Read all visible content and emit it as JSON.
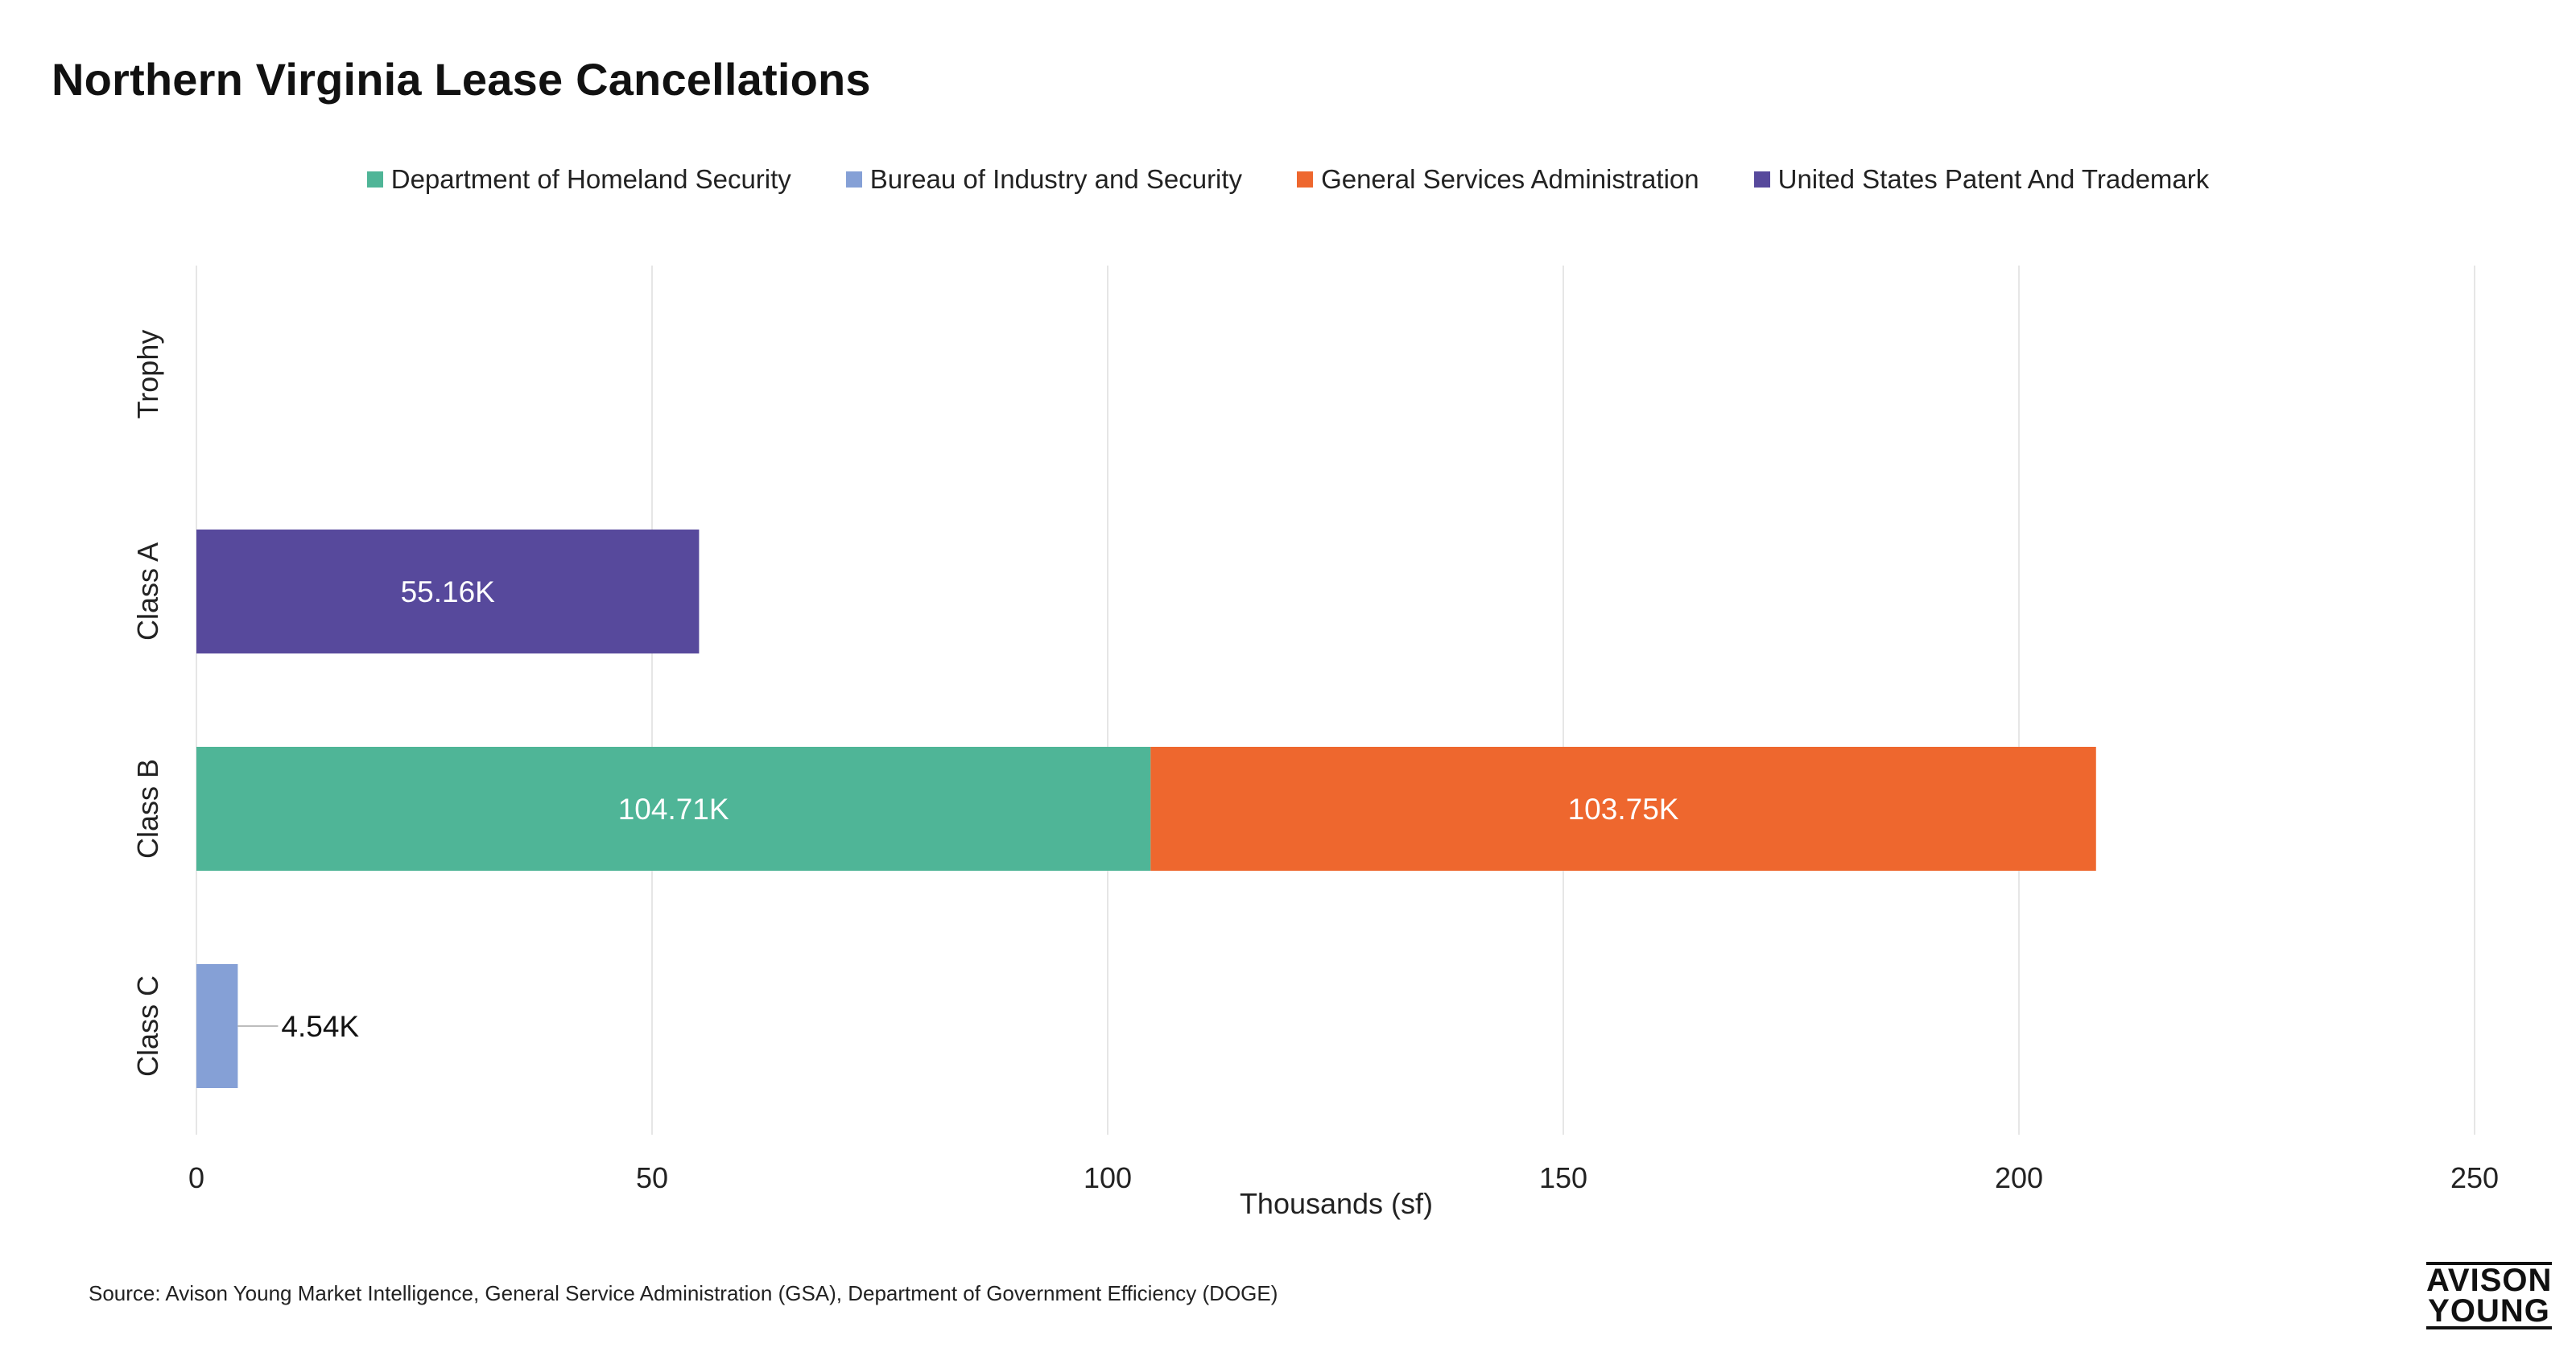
{
  "chart_data": {
    "type": "bar",
    "orientation": "horizontal",
    "stacked": true,
    "title": "Northern Virginia Lease Cancellations",
    "xlabel": "Thousands (sf)",
    "ylabel": "",
    "xlim": [
      0,
      250
    ],
    "x_ticks": [
      0,
      50,
      100,
      150,
      200,
      250
    ],
    "categories": [
      "Trophy",
      "Class A",
      "Class B",
      "Class C"
    ],
    "series": [
      {
        "name": "Department of Homeland Security",
        "color": "#4FB597",
        "values": [
          null,
          null,
          104.71,
          null
        ],
        "labels": [
          null,
          null,
          "104.71K",
          null
        ]
      },
      {
        "name": "Bureau of Industry and Security",
        "color": "#85A0D6",
        "values": [
          null,
          null,
          null,
          4.54
        ],
        "labels": [
          null,
          null,
          null,
          "4.54K"
        ]
      },
      {
        "name": "General Services Administration",
        "color": "#EE672E",
        "values": [
          null,
          null,
          103.75,
          null
        ],
        "labels": [
          null,
          null,
          "103.75K",
          null
        ]
      },
      {
        "name": "United States Patent And Trademark",
        "color": "#57499C",
        "values": [
          null,
          55.16,
          null,
          null
        ],
        "labels": [
          null,
          "55.16K",
          null,
          null
        ]
      }
    ],
    "grid": true,
    "legend_position": "top-center"
  },
  "source": "Source: Avison Young Market Intelligence, General Service Administration (GSA), Department of Government Efficiency (DOGE)",
  "logo": {
    "line1": "AVISON",
    "line2": "YOUNG"
  }
}
